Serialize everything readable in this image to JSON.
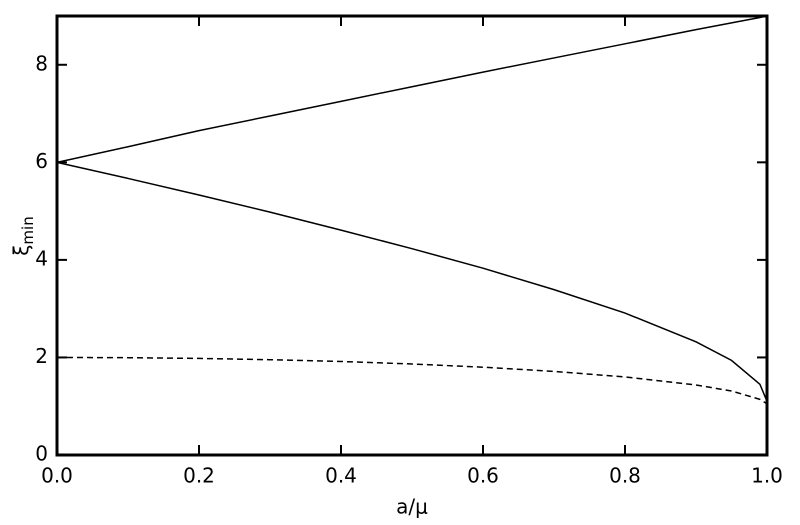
{
  "chart_data": {
    "type": "line",
    "x_label": "a/μ",
    "y_label": "ξ",
    "y_label_subscript": "min",
    "x": [
      0,
      0.1,
      0.2,
      0.3,
      0.4,
      0.5,
      0.6,
      0.7,
      0.8,
      0.9,
      0.95,
      0.99,
      1
    ],
    "series": [
      {
        "color": "#000000",
        "style": "solid",
        "values": [
          6,
          6.32,
          6.65,
          6.95,
          7.25,
          7.55,
          7.85,
          8.14,
          8.43,
          8.72,
          8.86,
          8.97,
          9
        ]
      },
      {
        "color": "#000000",
        "style": "solid",
        "values": [
          6,
          5.67,
          5.33,
          4.98,
          4.61,
          4.23,
          3.83,
          3.39,
          2.91,
          2.32,
          1.94,
          1.45,
          1.1
        ]
      },
      {
        "color": "#000000",
        "style": "dashed",
        "values": [
          2,
          1.995,
          1.98,
          1.954,
          1.917,
          1.866,
          1.8,
          1.714,
          1.6,
          1.436,
          1.312,
          1.141,
          1.05
        ]
      }
    ],
    "xlim": [
      0,
      1
    ],
    "ylim": [
      0,
      9
    ],
    "xticks": [
      {
        "value": 0,
        "label": "0.0"
      },
      0.2,
      0.4,
      0.6,
      0.8,
      {
        "value": 1,
        "label": "1.0"
      }
    ],
    "yticks": [
      0,
      2,
      4,
      6,
      8
    ],
    "grid": false
  }
}
